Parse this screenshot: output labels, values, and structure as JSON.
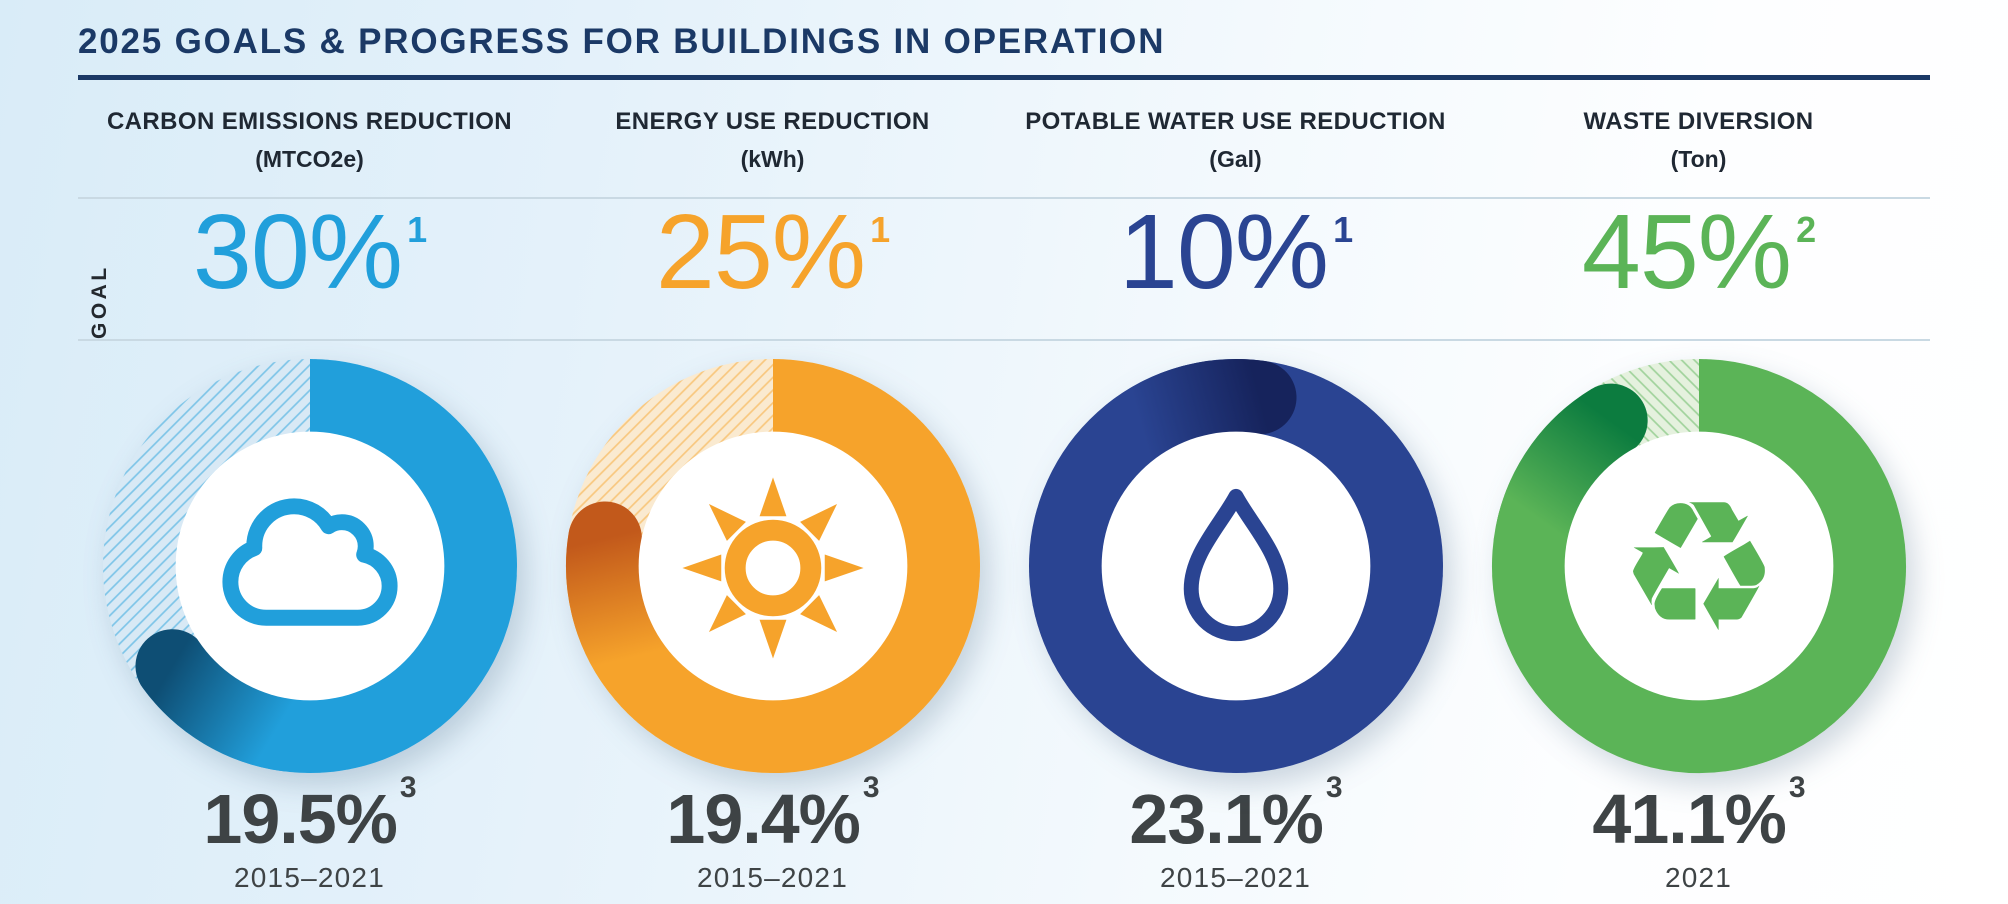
{
  "page": {
    "title": "2025 GOALS & PROGRESS FOR BUILDINGS IN OPERATION"
  },
  "goal_row_label": "GOAL",
  "colors": {
    "title": "#1B3966",
    "header_text": "#1F2833",
    "charcoal": "#3E4345",
    "divider": "#C9D9E3",
    "carbon_blue": "#219FDB",
    "energy_orange": "#F6A32B",
    "water_navy": "#2A4492",
    "waste_green": "#5BB457"
  },
  "chart_data": [
    {
      "type": "donut",
      "metric": "CARBON EMISSIONS REDUCTION",
      "unit": "(MTCO2e)",
      "goal_value": "30%",
      "goal_pct": 30,
      "goal_footnote": "1",
      "progress_value": "19.5%",
      "progress_pct": 19.5,
      "progress_footnote": "3",
      "period": "2015–2021",
      "icon": "cloud",
      "color": "#219FDB",
      "color_dark": "#0E4E74",
      "hatch_bg": "#D8E9F5",
      "hatch_angle": -45
    },
    {
      "type": "donut",
      "metric": "ENERGY USE REDUCTION",
      "unit": "(kWh)",
      "goal_value": "25%",
      "goal_pct": 25,
      "goal_footnote": "1",
      "progress_value": "19.4%",
      "progress_pct": 19.4,
      "progress_footnote": "3",
      "period": "2015–2021",
      "icon": "sun",
      "color": "#F6A32B",
      "color_dark": "#C2591B",
      "hatch_bg": "#FAEAD0",
      "hatch_angle": -45
    },
    {
      "type": "donut",
      "metric": "POTABLE WATER USE REDUCTION",
      "unit": "(Gal)",
      "goal_value": "10%",
      "goal_pct": 10,
      "goal_footnote": "1",
      "progress_value": "23.1%",
      "progress_pct": 23.1,
      "progress_footnote": "3",
      "period": "2015–2021",
      "icon": "drop",
      "color": "#2A4492",
      "color_dark": "#16235C",
      "hatch_bg": "#D9DFEF",
      "hatch_angle": -45
    },
    {
      "type": "donut",
      "metric": "WASTE DIVERSION",
      "unit": "(Ton)",
      "goal_value": "45%",
      "goal_pct": 45,
      "goal_footnote": "2",
      "progress_value": "41.1%",
      "progress_pct": 41.1,
      "progress_footnote": "3",
      "period": "2021",
      "icon": "recycle",
      "color": "#5BB457",
      "color_dark": "#0C7C3F",
      "hatch_bg": "#E5F1DE",
      "hatch_angle": 45
    }
  ]
}
